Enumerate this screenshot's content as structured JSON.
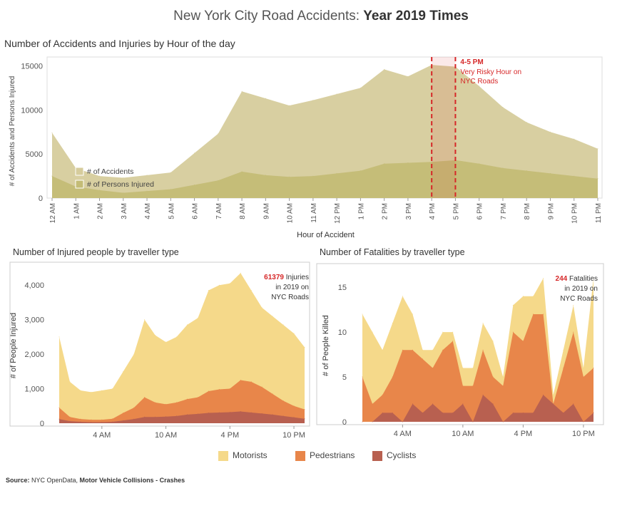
{
  "title": {
    "prefix": "New York City Road Accidents: ",
    "bold": "Year 2019 Times"
  },
  "legend": [
    {
      "label": "Motorists",
      "color": "#f5d98a"
    },
    {
      "label": "Pedestrians",
      "color": "#e8864a"
    },
    {
      "label": "Cyclists",
      "color": "#b86050"
    }
  ],
  "source": {
    "label": "Source:",
    "text": " NYC OpenData, ",
    "dataset": "Motor Vehicle Collisions - Crashes"
  },
  "chart_data": [
    {
      "type": "area",
      "title": "Number of Accidents and Injuries by Hour of the day",
      "xlabel": "Hour of Accident",
      "ylabel": "# of Accidents and Persons Injured",
      "categories": [
        "12 AM",
        "1 AM",
        "2 AM",
        "3 AM",
        "4 AM",
        "5 AM",
        "6 AM",
        "7 AM",
        "8 AM",
        "9 AM",
        "10 AM",
        "11 AM",
        "12 PM",
        "1 PM",
        "2 PM",
        "3 PM",
        "4 PM",
        "5 PM",
        "6 PM",
        "7 PM",
        "8 PM",
        "9 PM",
        "10 PM",
        "11 PM"
      ],
      "ylim": [
        0,
        16000
      ],
      "yticks": [
        0,
        5000,
        10000,
        15000
      ],
      "series": [
        {
          "name": "# of Accidents",
          "color": "#d6cc9c",
          "values": [
            7400,
            3400,
            2500,
            2300,
            2600,
            2900,
            5100,
            7300,
            12100,
            11300,
            10500,
            11100,
            11800,
            12500,
            14600,
            13800,
            15100,
            14900,
            12700,
            10300,
            8600,
            7500,
            6700,
            5600
          ]
        },
        {
          "name": "# of Persons Injured",
          "color": "#c4bc76",
          "values": [
            2500,
            1300,
            900,
            600,
            800,
            1000,
            1500,
            2000,
            3000,
            2600,
            2400,
            2500,
            2800,
            3100,
            3900,
            4000,
            4100,
            4300,
            3900,
            3400,
            3100,
            2800,
            2500,
            2200
          ]
        }
      ],
      "highlight": {
        "from": "4 PM",
        "to": "5 PM",
        "title": "4-5 PM",
        "text": "Very Risky Hour on NYC Roads",
        "color": "#d62728"
      },
      "grid": false,
      "legend_position": "bottom-left"
    },
    {
      "type": "area",
      "title": "Number of Injured people by traveller type",
      "ylabel": "# of People Injured",
      "xtick_labels": [
        "4 AM",
        "10 AM",
        "4 PM",
        "10 PM"
      ],
      "xtick_hours": [
        4,
        10,
        16,
        22
      ],
      "hours": [
        0,
        1,
        2,
        3,
        4,
        5,
        6,
        7,
        8,
        9,
        10,
        11,
        12,
        13,
        14,
        15,
        16,
        17,
        18,
        19,
        20,
        21,
        22,
        23
      ],
      "ylim": [
        0,
        4500
      ],
      "yticks": [
        0,
        1000,
        2000,
        3000,
        4000
      ],
      "ytick_labels": [
        "0",
        "1,000",
        "2,000",
        "3,000",
        "4,000"
      ],
      "series": [
        {
          "name": "Motorists",
          "values": [
            2500,
            1200,
            950,
            900,
            950,
            1000,
            1500,
            2000,
            3000,
            2550,
            2350,
            2500,
            2850,
            3050,
            3850,
            4000,
            4050,
            4350,
            3850,
            3350,
            3100,
            2850,
            2600,
            2200
          ]
        },
        {
          "name": "Pedestrians",
          "values": [
            450,
            180,
            120,
            100,
            100,
            130,
            300,
            450,
            750,
            600,
            550,
            600,
            700,
            750,
            930,
            980,
            1000,
            1250,
            1200,
            1050,
            850,
            650,
            500,
            400
          ]
        },
        {
          "name": "Cyclists",
          "values": [
            120,
            60,
            40,
            30,
            30,
            40,
            80,
            120,
            180,
            180,
            190,
            210,
            250,
            270,
            300,
            310,
            320,
            340,
            310,
            280,
            250,
            210,
            170,
            130
          ]
        }
      ],
      "annotation": {
        "number": "61379",
        "text": "Injuries in 2019 on NYC Roads"
      }
    },
    {
      "type": "area",
      "title": "Number of Fatalities by traveller type",
      "ylabel": "# of People Killed",
      "xtick_labels": [
        "4 AM",
        "10 AM",
        "4 PM",
        "10 PM"
      ],
      "xtick_hours": [
        4,
        10,
        16,
        22
      ],
      "hours": [
        0,
        1,
        2,
        3,
        4,
        5,
        6,
        7,
        8,
        9,
        10,
        11,
        12,
        13,
        14,
        15,
        16,
        17,
        18,
        19,
        20,
        21,
        22,
        23
      ],
      "ylim": [
        0,
        17
      ],
      "yticks": [
        0,
        5,
        10,
        15
      ],
      "series": [
        {
          "name": "Motorists",
          "values": [
            12,
            10,
            8,
            11,
            14,
            12,
            8,
            8,
            10,
            10,
            6,
            6,
            11,
            9,
            5,
            13,
            14,
            14,
            16,
            3,
            8,
            13,
            6,
            16
          ]
        },
        {
          "name": "Pedestrians",
          "values": [
            5,
            2,
            3,
            5,
            8,
            8,
            7,
            6,
            8,
            9,
            4,
            4,
            8,
            5,
            4,
            10,
            9,
            12,
            12,
            2,
            6,
            10,
            5,
            6
          ]
        },
        {
          "name": "Cyclists",
          "values": [
            0,
            0,
            1,
            1,
            0,
            2,
            1,
            2,
            1,
            1,
            2,
            0,
            3,
            2,
            0,
            1,
            1,
            1,
            3,
            2,
            1,
            2,
            0,
            1
          ]
        }
      ],
      "annotation": {
        "number": "244",
        "text": "Fatalities in 2019 on NYC Roads"
      }
    }
  ]
}
